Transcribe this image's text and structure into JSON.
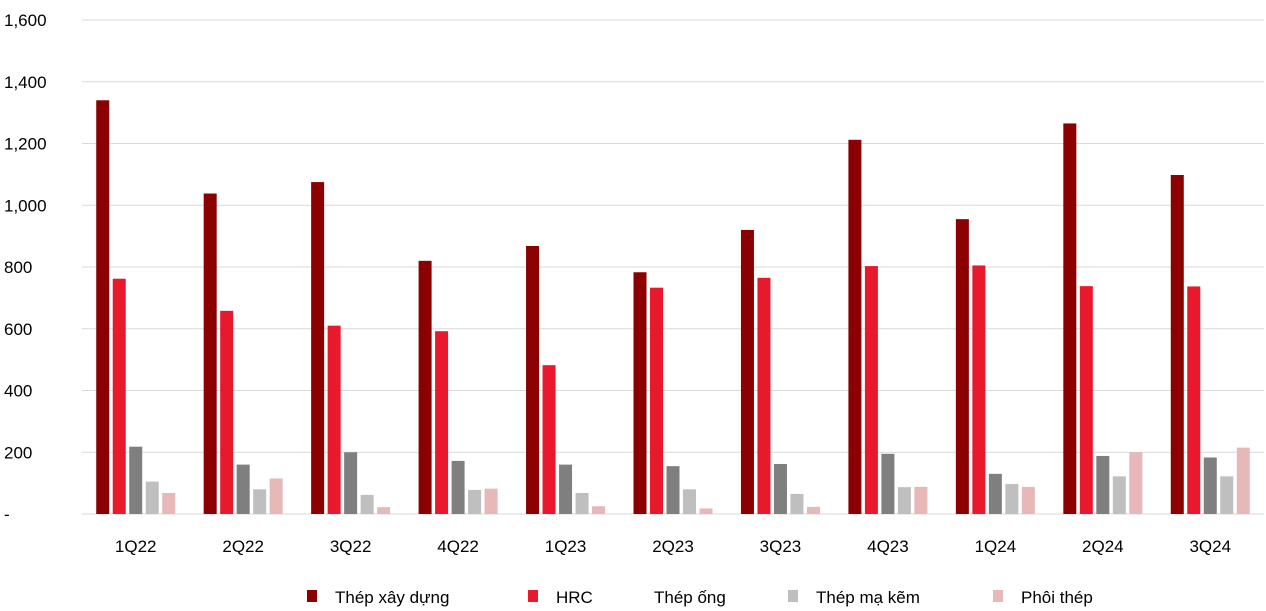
{
  "chart_data": {
    "type": "bar",
    "title": "",
    "xlabel": "",
    "ylabel": "",
    "ylim": [
      0,
      1600
    ],
    "y_ticks": [
      0,
      200,
      400,
      600,
      800,
      1000,
      1200,
      1400,
      1600
    ],
    "y_tick_labels": [
      "-",
      "200",
      "400",
      "600",
      "800",
      "1,000",
      "1,200",
      "1,400",
      "1,600"
    ],
    "grid": "horizontal",
    "legend_position": "bottom",
    "categories": [
      "1Q22",
      "2Q22",
      "3Q22",
      "4Q22",
      "1Q23",
      "2Q23",
      "3Q23",
      "4Q23",
      "1Q24",
      "2Q24",
      "3Q24"
    ],
    "series": [
      {
        "name": "Thép xây dựng",
        "color": "#8B0000",
        "values": [
          1340,
          1038,
          1075,
          820,
          868,
          783,
          920,
          1212,
          955,
          1265,
          1098
        ]
      },
      {
        "name": "HRC",
        "color": "#E8192C",
        "values": [
          762,
          658,
          610,
          592,
          482,
          733,
          765,
          803,
          805,
          738,
          737
        ]
      },
      {
        "name": "Thép ống",
        "color": "#7F7F7F",
        "values": [
          218,
          160,
          200,
          172,
          160,
          155,
          162,
          195,
          130,
          188,
          183
        ]
      },
      {
        "name": "Thép mạ kẽm",
        "color": "#BFBFBF",
        "values": [
          105,
          80,
          62,
          78,
          68,
          80,
          65,
          87,
          97,
          122,
          122
        ]
      },
      {
        "name": "Phôi thép",
        "color": "#E6B8B7",
        "values": [
          68,
          115,
          22,
          82,
          25,
          18,
          23,
          88,
          88,
          200,
          215
        ]
      }
    ]
  }
}
